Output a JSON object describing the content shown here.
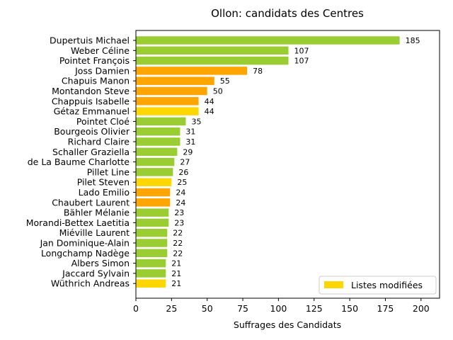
{
  "chart_data": {
    "type": "bar",
    "orientation": "horizontal",
    "title": "Ollon: candidats des Centres",
    "xlabel": "Suffrages des Candidats",
    "ylabel": "",
    "xlim": [
      0,
      213
    ],
    "xticks": [
      0,
      25,
      50,
      75,
      100,
      125,
      150,
      175,
      200
    ],
    "grid": false,
    "legend": {
      "position": "lower right",
      "entries": [
        {
          "label": "Listes modifiées",
          "color": "#ffd700"
        }
      ]
    },
    "categories": [
      "Dupertuis Michael",
      "Weber Céline",
      "Pointet François",
      "Joss Damien",
      "Chapuis Manon",
      "Montandon Steve",
      "Chappuis Isabelle",
      "Gétaz Emmanuel",
      "Pointet Cloé",
      "Bourgeois Olivier",
      "Richard Claire",
      "Schaller Graziella",
      "de La Baume Charlotte",
      "Pillet Line",
      "Pilet Steven",
      "Lado Emilio",
      "Chaubert Laurent",
      "Bähler Mélanie",
      "Morandi-Bettex Laetitia",
      "Miéville Laurent",
      "Jan Dominique-Alain",
      "Longchamp Nadège",
      "Albers Simon",
      "Jaccard Sylvain",
      "Wüthrich Andreas"
    ],
    "values": [
      185,
      107,
      107,
      78,
      55,
      50,
      44,
      44,
      35,
      31,
      31,
      29,
      27,
      26,
      25,
      24,
      24,
      23,
      23,
      22,
      22,
      22,
      21,
      21,
      21
    ],
    "colors": [
      "#9acd32",
      "#9acd32",
      "#9acd32",
      "#ffa500",
      "#ffa500",
      "#ffa500",
      "#ffa500",
      "#ffd700",
      "#9acd32",
      "#9acd32",
      "#9acd32",
      "#9acd32",
      "#9acd32",
      "#9acd32",
      "#ffd700",
      "#ffa500",
      "#ffa500",
      "#9acd32",
      "#9acd32",
      "#9acd32",
      "#9acd32",
      "#9acd32",
      "#9acd32",
      "#9acd32",
      "#ffd700"
    ]
  }
}
